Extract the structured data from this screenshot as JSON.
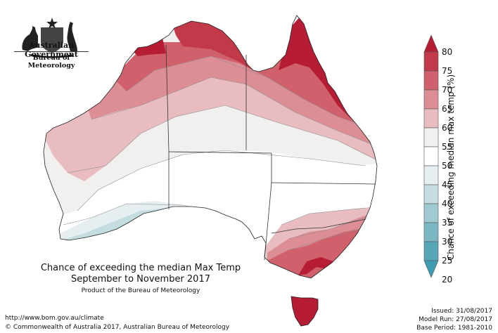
{
  "branding": {
    "government": "Australian Government",
    "agency": "Bureau of Meteorology",
    "crest_icon": "commonwealth-coat-of-arms"
  },
  "map": {
    "title_line1": "Chance of exceeding the median Max Temp",
    "title_line2": "September to November 2017",
    "product": "Product of the Bureau of Meteorology"
  },
  "legend": {
    "title": "Chance of exceeding median max temp (%)",
    "ticks": [
      "80",
      "75",
      "70",
      "65",
      "60",
      "55",
      "50",
      "45",
      "40",
      "35",
      "30",
      "25",
      "20"
    ],
    "colors": [
      "#c23a4a",
      "#d0606c",
      "#dd8d94",
      "#e8bcc0",
      "#f1f0ef",
      "#ffffff",
      "#e6eef1",
      "#c4dde1",
      "#9fcad1",
      "#7bb8c4",
      "#57a6b7"
    ],
    "top_arrow_color": "#b61c34",
    "bottom_arrow_color": "#3f9bb1"
  },
  "footer": {
    "url": "http://www.bom.gov.au/climate",
    "copyright": "© Commonwealth of Australia 2017, Australian Bureau of Meteorology",
    "issued": "Issued: 31/08/2017",
    "model_run": "Model Run: 27/08/2017",
    "base_period": "Base Period: 1981-2010"
  }
}
